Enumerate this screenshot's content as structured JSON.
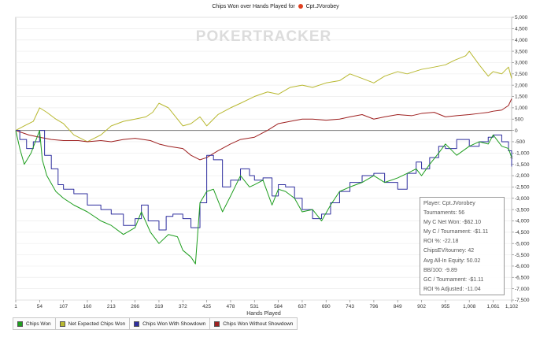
{
  "chart_data": {
    "type": "line",
    "title_prefix": "Chips Won over Hands Played for",
    "title_player": "Cpt.JVorobey",
    "xlabel": "Hands Played",
    "ylabel": "",
    "xlim": [
      1,
      1102
    ],
    "ylim": [
      -7500,
      5000
    ],
    "x_ticks": [
      1,
      54,
      107,
      160,
      213,
      266,
      319,
      372,
      425,
      478,
      531,
      584,
      637,
      690,
      743,
      796,
      849,
      902,
      955,
      1008,
      1061,
      1102
    ],
    "x_tick_labels": [
      "1",
      "54",
      "107",
      "160",
      "213",
      "266",
      "319",
      "372",
      "425",
      "478",
      "531",
      "584",
      "637",
      "690",
      "743",
      "796",
      "849",
      "902",
      "955",
      "1,008",
      "1,061",
      "1,102"
    ],
    "y_ticks": [
      5000,
      4500,
      4000,
      3500,
      3000,
      2500,
      2000,
      1500,
      1000,
      500,
      0,
      -500,
      -1000,
      -1500,
      -2000,
      -2500,
      -3000,
      -3500,
      -4000,
      -4500,
      -5000,
      -5500,
      -6000,
      -6500,
      -7000,
      -7500
    ],
    "y_tick_labels": [
      "5,000",
      "4,500",
      "4,000",
      "3,500",
      "3,000",
      "2,500",
      "2,000",
      "1,500",
      "1,000",
      "500",
      "0",
      "-500",
      "-1,000",
      "-1,500",
      "-2,000",
      "-2,500",
      "-3,000",
      "-3,500",
      "-4,000",
      "-4,500",
      "-5,000",
      "-5,500",
      "-6,000",
      "-6,500",
      "-7,000",
      "-7,500"
    ],
    "grid": "horizontal",
    "legend_position": "bottom-left",
    "watermark": "POKERTRACKER",
    "series": [
      {
        "name": "Chips Won",
        "color": "#1f9e1f",
        "x": [
          1,
          10,
          20,
          35,
          54,
          60,
          70,
          90,
          107,
          130,
          160,
          190,
          213,
          240,
          266,
          280,
          300,
          319,
          340,
          360,
          372,
          390,
          400,
          410,
          425,
          440,
          460,
          478,
          500,
          520,
          531,
          550,
          570,
          584,
          600,
          620,
          637,
          660,
          680,
          700,
          720,
          743,
          770,
          796,
          820,
          849,
          870,
          890,
          902,
          920,
          940,
          955,
          980,
          1008,
          1030,
          1050,
          1061,
          1080,
          1095,
          1102
        ],
        "y": [
          0,
          -800,
          -1500,
          -1000,
          0,
          -1300,
          -2000,
          -2700,
          -3000,
          -3300,
          -3600,
          -4000,
          -4200,
          -4600,
          -4300,
          -3600,
          -4500,
          -5000,
          -4600,
          -4700,
          -5300,
          -5600,
          -5900,
          -3200,
          -2700,
          -2600,
          -3600,
          -2900,
          -2000,
          -2500,
          -2400,
          -2200,
          -3300,
          -2600,
          -2700,
          -3000,
          -3600,
          -3500,
          -4000,
          -3300,
          -2700,
          -2500,
          -2300,
          -2000,
          -2300,
          -2100,
          -1900,
          -1700,
          -2000,
          -1500,
          -1000,
          -600,
          -1100,
          -700,
          -500,
          -600,
          -200,
          -700,
          -800,
          -1200
        ]
      },
      {
        "name": "Net Expected Chips Won",
        "color": "#b8b830",
        "x": [
          1,
          20,
          40,
          54,
          70,
          90,
          107,
          130,
          160,
          190,
          213,
          240,
          266,
          290,
          305,
          319,
          340,
          360,
          372,
          390,
          410,
          425,
          450,
          478,
          500,
          531,
          560,
          584,
          610,
          637,
          660,
          690,
          720,
          743,
          770,
          796,
          820,
          849,
          870,
          902,
          930,
          955,
          975,
          1000,
          1008,
          1030,
          1050,
          1061,
          1080,
          1095,
          1102
        ],
        "y": [
          0,
          200,
          400,
          1000,
          800,
          500,
          300,
          -200,
          -500,
          -200,
          200,
          400,
          500,
          600,
          800,
          1200,
          1000,
          500,
          200,
          300,
          600,
          200,
          700,
          1000,
          1200,
          1500,
          1700,
          1600,
          1900,
          2000,
          1900,
          2100,
          2200,
          2500,
          2300,
          2100,
          2400,
          2600,
          2500,
          2700,
          2800,
          2900,
          3100,
          3300,
          3500,
          2900,
          2400,
          2600,
          2500,
          2800,
          2300
        ]
      },
      {
        "name": "Chips Won With Showdown",
        "color": "#2e2e9e",
        "x": [
          1,
          10,
          25,
          40,
          54,
          65,
          80,
          95,
          107,
          130,
          160,
          190,
          213,
          240,
          266,
          280,
          295,
          319,
          335,
          350,
          372,
          390,
          410,
          425,
          440,
          460,
          478,
          500,
          520,
          531,
          550,
          570,
          584,
          600,
          620,
          637,
          660,
          680,
          700,
          720,
          743,
          770,
          796,
          820,
          849,
          870,
          890,
          902,
          920,
          940,
          955,
          980,
          1008,
          1030,
          1050,
          1061,
          1080,
          1095,
          1102
        ],
        "y": [
          0,
          -400,
          -800,
          -500,
          0,
          -1100,
          -1700,
          -2400,
          -2600,
          -2800,
          -3300,
          -3500,
          -3700,
          -4200,
          -3900,
          -3300,
          -4000,
          -4400,
          -3800,
          -3700,
          -3900,
          -4300,
          -3200,
          -1100,
          -1300,
          -2500,
          -2200,
          -1700,
          -2000,
          -2200,
          -2100,
          -2900,
          -2400,
          -2500,
          -3000,
          -3500,
          -3900,
          -3700,
          -3200,
          -2700,
          -2300,
          -2000,
          -1900,
          -2300,
          -2600,
          -1900,
          -1400,
          -1700,
          -1200,
          -700,
          -800,
          -400,
          -700,
          -500,
          -300,
          -200,
          -500,
          -900,
          -1600
        ]
      },
      {
        "name": "Chips Won Without Showdown",
        "color": "#9e2020",
        "x": [
          1,
          30,
          54,
          80,
          107,
          140,
          160,
          190,
          213,
          240,
          266,
          300,
          319,
          340,
          372,
          390,
          410,
          425,
          450,
          478,
          500,
          531,
          560,
          584,
          610,
          637,
          660,
          690,
          720,
          743,
          770,
          796,
          820,
          849,
          880,
          902,
          930,
          955,
          980,
          1008,
          1030,
          1050,
          1061,
          1080,
          1095,
          1102
        ],
        "y": [
          0,
          -200,
          -300,
          -400,
          -450,
          -450,
          -500,
          -450,
          -500,
          -400,
          -350,
          -450,
          -600,
          -700,
          -800,
          -1100,
          -1300,
          -1200,
          -900,
          -600,
          -400,
          -300,
          0,
          300,
          400,
          500,
          500,
          450,
          500,
          600,
          700,
          500,
          600,
          700,
          650,
          750,
          800,
          600,
          650,
          700,
          750,
          800,
          850,
          900,
          1100,
          1400
        ]
      }
    ]
  },
  "stats": {
    "lines": [
      "Player: Cpt.JVorobey",
      "Tournaments: 56",
      "My C Net Won: -$62.10",
      "My C / Tournament: -$1.11",
      "ROI %: -22.18",
      "ChipsEV/tourney: 42",
      "Avg All-In Equity: 50.02",
      "BB/100: -9.89",
      "GC / Tournament: -$1.11",
      "ROI % Adjusted: -11.04"
    ]
  },
  "legend": {
    "items": [
      {
        "label": "Chips Won",
        "color": "#1f9e1f"
      },
      {
        "label": "Net Expected Chips Won",
        "color": "#b8b830"
      },
      {
        "label": "Chips Won With Showdown",
        "color": "#2e2e9e"
      },
      {
        "label": "Chips Won Without Showdown",
        "color": "#9e2020"
      }
    ]
  },
  "resize_handle_glyph": "«"
}
